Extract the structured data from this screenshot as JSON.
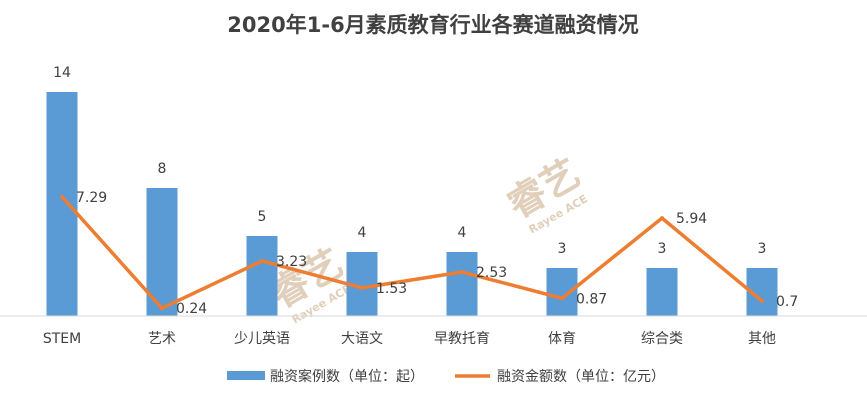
{
  "chart_data": {
    "type": "bar",
    "title": "2020年1-6月素质教育行业各赛道融资情况",
    "categories": [
      "STEM",
      "艺术",
      "少儿英语",
      "大语文",
      "早教托育",
      "体育",
      "综合类",
      "其他"
    ],
    "series": [
      {
        "name": "融资案例数（单位：起）",
        "type": "bar",
        "color": "#5b9bd5",
        "values": [
          14,
          8,
          5,
          4,
          4,
          3,
          3,
          3
        ]
      },
      {
        "name": "融资金额数（单位：亿元）",
        "type": "line",
        "color": "#ed7d31",
        "values": [
          7.29,
          0.24,
          3.23,
          1.53,
          2.53,
          0.87,
          5.94,
          0.7
        ]
      }
    ],
    "grid": false,
    "legend": "bottom"
  },
  "watermark": {
    "text": "睿艺",
    "subtext": "Rayee ACE"
  }
}
